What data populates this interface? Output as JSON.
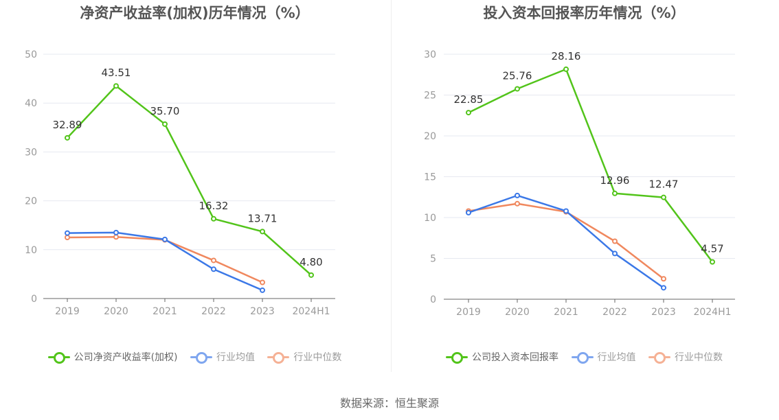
{
  "source": "数据来源：恒生聚源",
  "colors": {
    "company": "#52c41a",
    "avg": "#3b78e7",
    "median": "#f0885e",
    "grid": "#e6e8f0",
    "axis": "#999999"
  },
  "chart_data": [
    {
      "type": "line",
      "title": "净资产收益率(加权)历年情况（%）",
      "categories": [
        "2019",
        "2020",
        "2021",
        "2022",
        "2023",
        "2024H1"
      ],
      "ylim": [
        0,
        50
      ],
      "yticks": [
        "0",
        "10",
        "20",
        "30",
        "40",
        "50"
      ],
      "grid": true,
      "legend_position": "bottom",
      "series": [
        {
          "name": "公司净资产收益率(加权)",
          "key": "company",
          "values": [
            32.89,
            43.51,
            35.7,
            16.32,
            13.71,
            4.8
          ],
          "labels": [
            "32.89",
            "43.51",
            "35.70",
            "16.32",
            "13.71",
            "4.80"
          ]
        },
        {
          "name": "行业均值",
          "key": "avg",
          "values": [
            13.4,
            13.5,
            12.1,
            6.0,
            1.7,
            null
          ]
        },
        {
          "name": "行业中位数",
          "key": "median",
          "values": [
            12.5,
            12.6,
            12.0,
            7.8,
            3.3,
            null
          ]
        }
      ]
    },
    {
      "type": "line",
      "title": "投入资本回报率历年情况（%）",
      "categories": [
        "2019",
        "2020",
        "2021",
        "2022",
        "2023",
        "2024H1"
      ],
      "ylim": [
        0,
        30
      ],
      "yticks": [
        "0",
        "5",
        "10",
        "15",
        "20",
        "25",
        "30"
      ],
      "grid": true,
      "legend_position": "bottom",
      "series": [
        {
          "name": "公司投入资本回报率",
          "key": "company",
          "values": [
            22.85,
            25.76,
            28.16,
            12.96,
            12.47,
            4.57
          ],
          "labels": [
            "22.85",
            "25.76",
            "28.16",
            "12.96",
            "12.47",
            "4.57"
          ]
        },
        {
          "name": "行业均值",
          "key": "avg",
          "values": [
            10.6,
            12.7,
            10.8,
            5.6,
            1.4,
            null
          ]
        },
        {
          "name": "行业中位数",
          "key": "median",
          "values": [
            10.8,
            11.7,
            10.7,
            7.1,
            2.5,
            null
          ]
        }
      ]
    }
  ]
}
